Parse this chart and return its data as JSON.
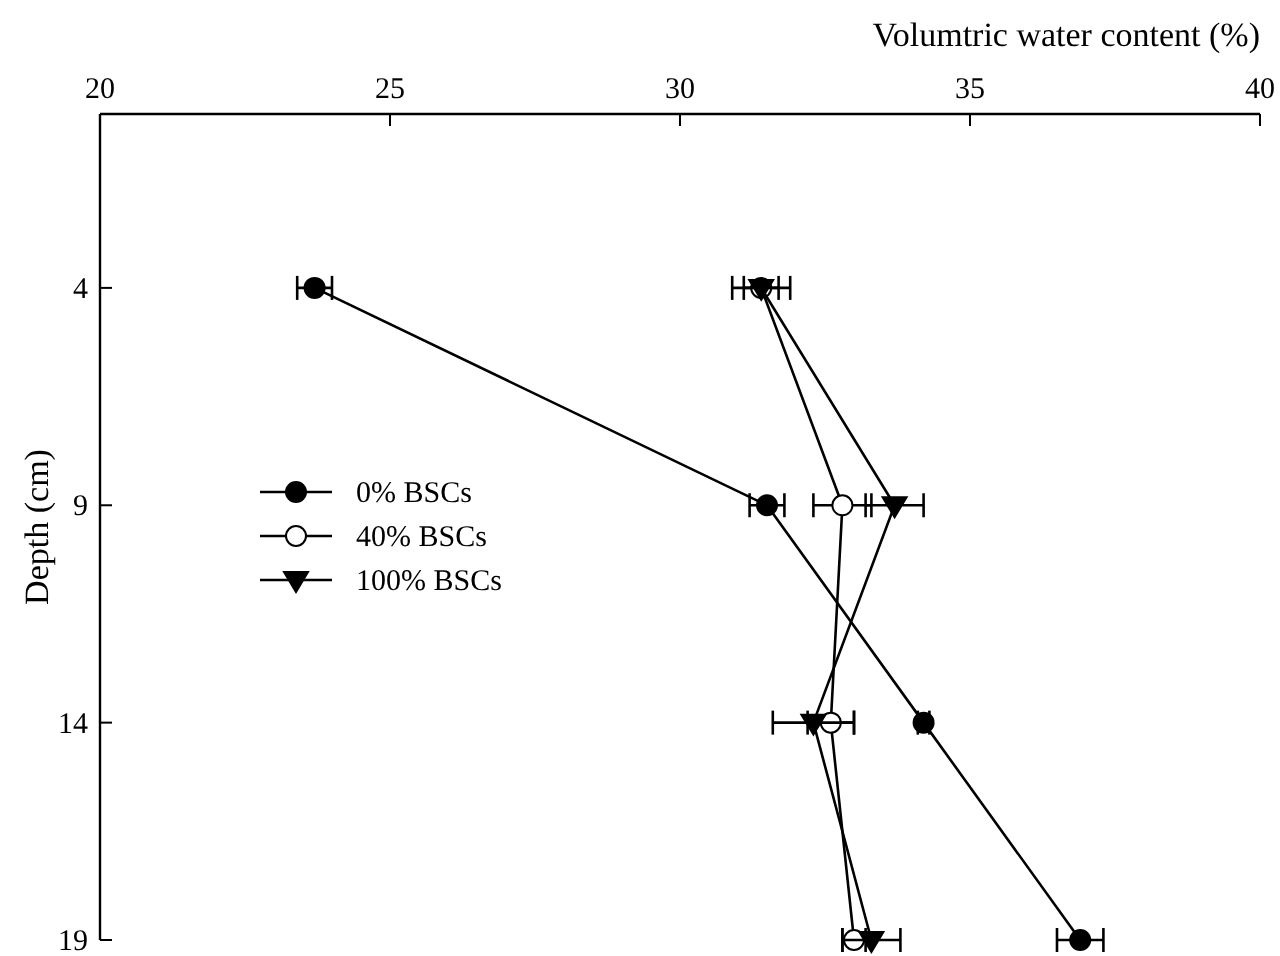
{
  "chart_data": {
    "type": "line",
    "xlabel": "Volumtric water content (%)",
    "ylabel": "Depth (cm)",
    "xlim": [
      20,
      40
    ],
    "xticks": [
      20,
      25,
      30,
      35,
      40
    ],
    "ylim": [
      19,
      0
    ],
    "yticks": [
      4,
      9,
      14,
      19
    ],
    "legend": "left",
    "grid": false,
    "series": [
      {
        "name": "0% BSCs",
        "color": "#000000",
        "marker": "circle",
        "x": [
          23.7,
          31.5,
          34.2,
          36.9
        ],
        "values": [
          4,
          9,
          14,
          19
        ],
        "xerrors": [
          0.3,
          0.3,
          0.1,
          0.4
        ]
      },
      {
        "name": "40% BSCs",
        "color": "#000000",
        "marker": "circle",
        "colors": [
          "#ffffff",
          "#ffffff",
          "#ffffff",
          "#ffffff"
        ],
        "x": [
          31.4,
          32.8,
          32.6,
          33.0
        ],
        "values": [
          4,
          9,
          14,
          19
        ],
        "xerrors": [
          0.3,
          0.5,
          0.4,
          0.2
        ]
      },
      {
        "name": "100% BSCs",
        "color": "#000000",
        "marker": "triangle",
        "x": [
          31.4,
          33.7,
          32.3,
          33.3
        ],
        "values": [
          4,
          9,
          14,
          19
        ],
        "xerrors": [
          0.5,
          0.5,
          0.7,
          0.5
        ]
      }
    ]
  }
}
